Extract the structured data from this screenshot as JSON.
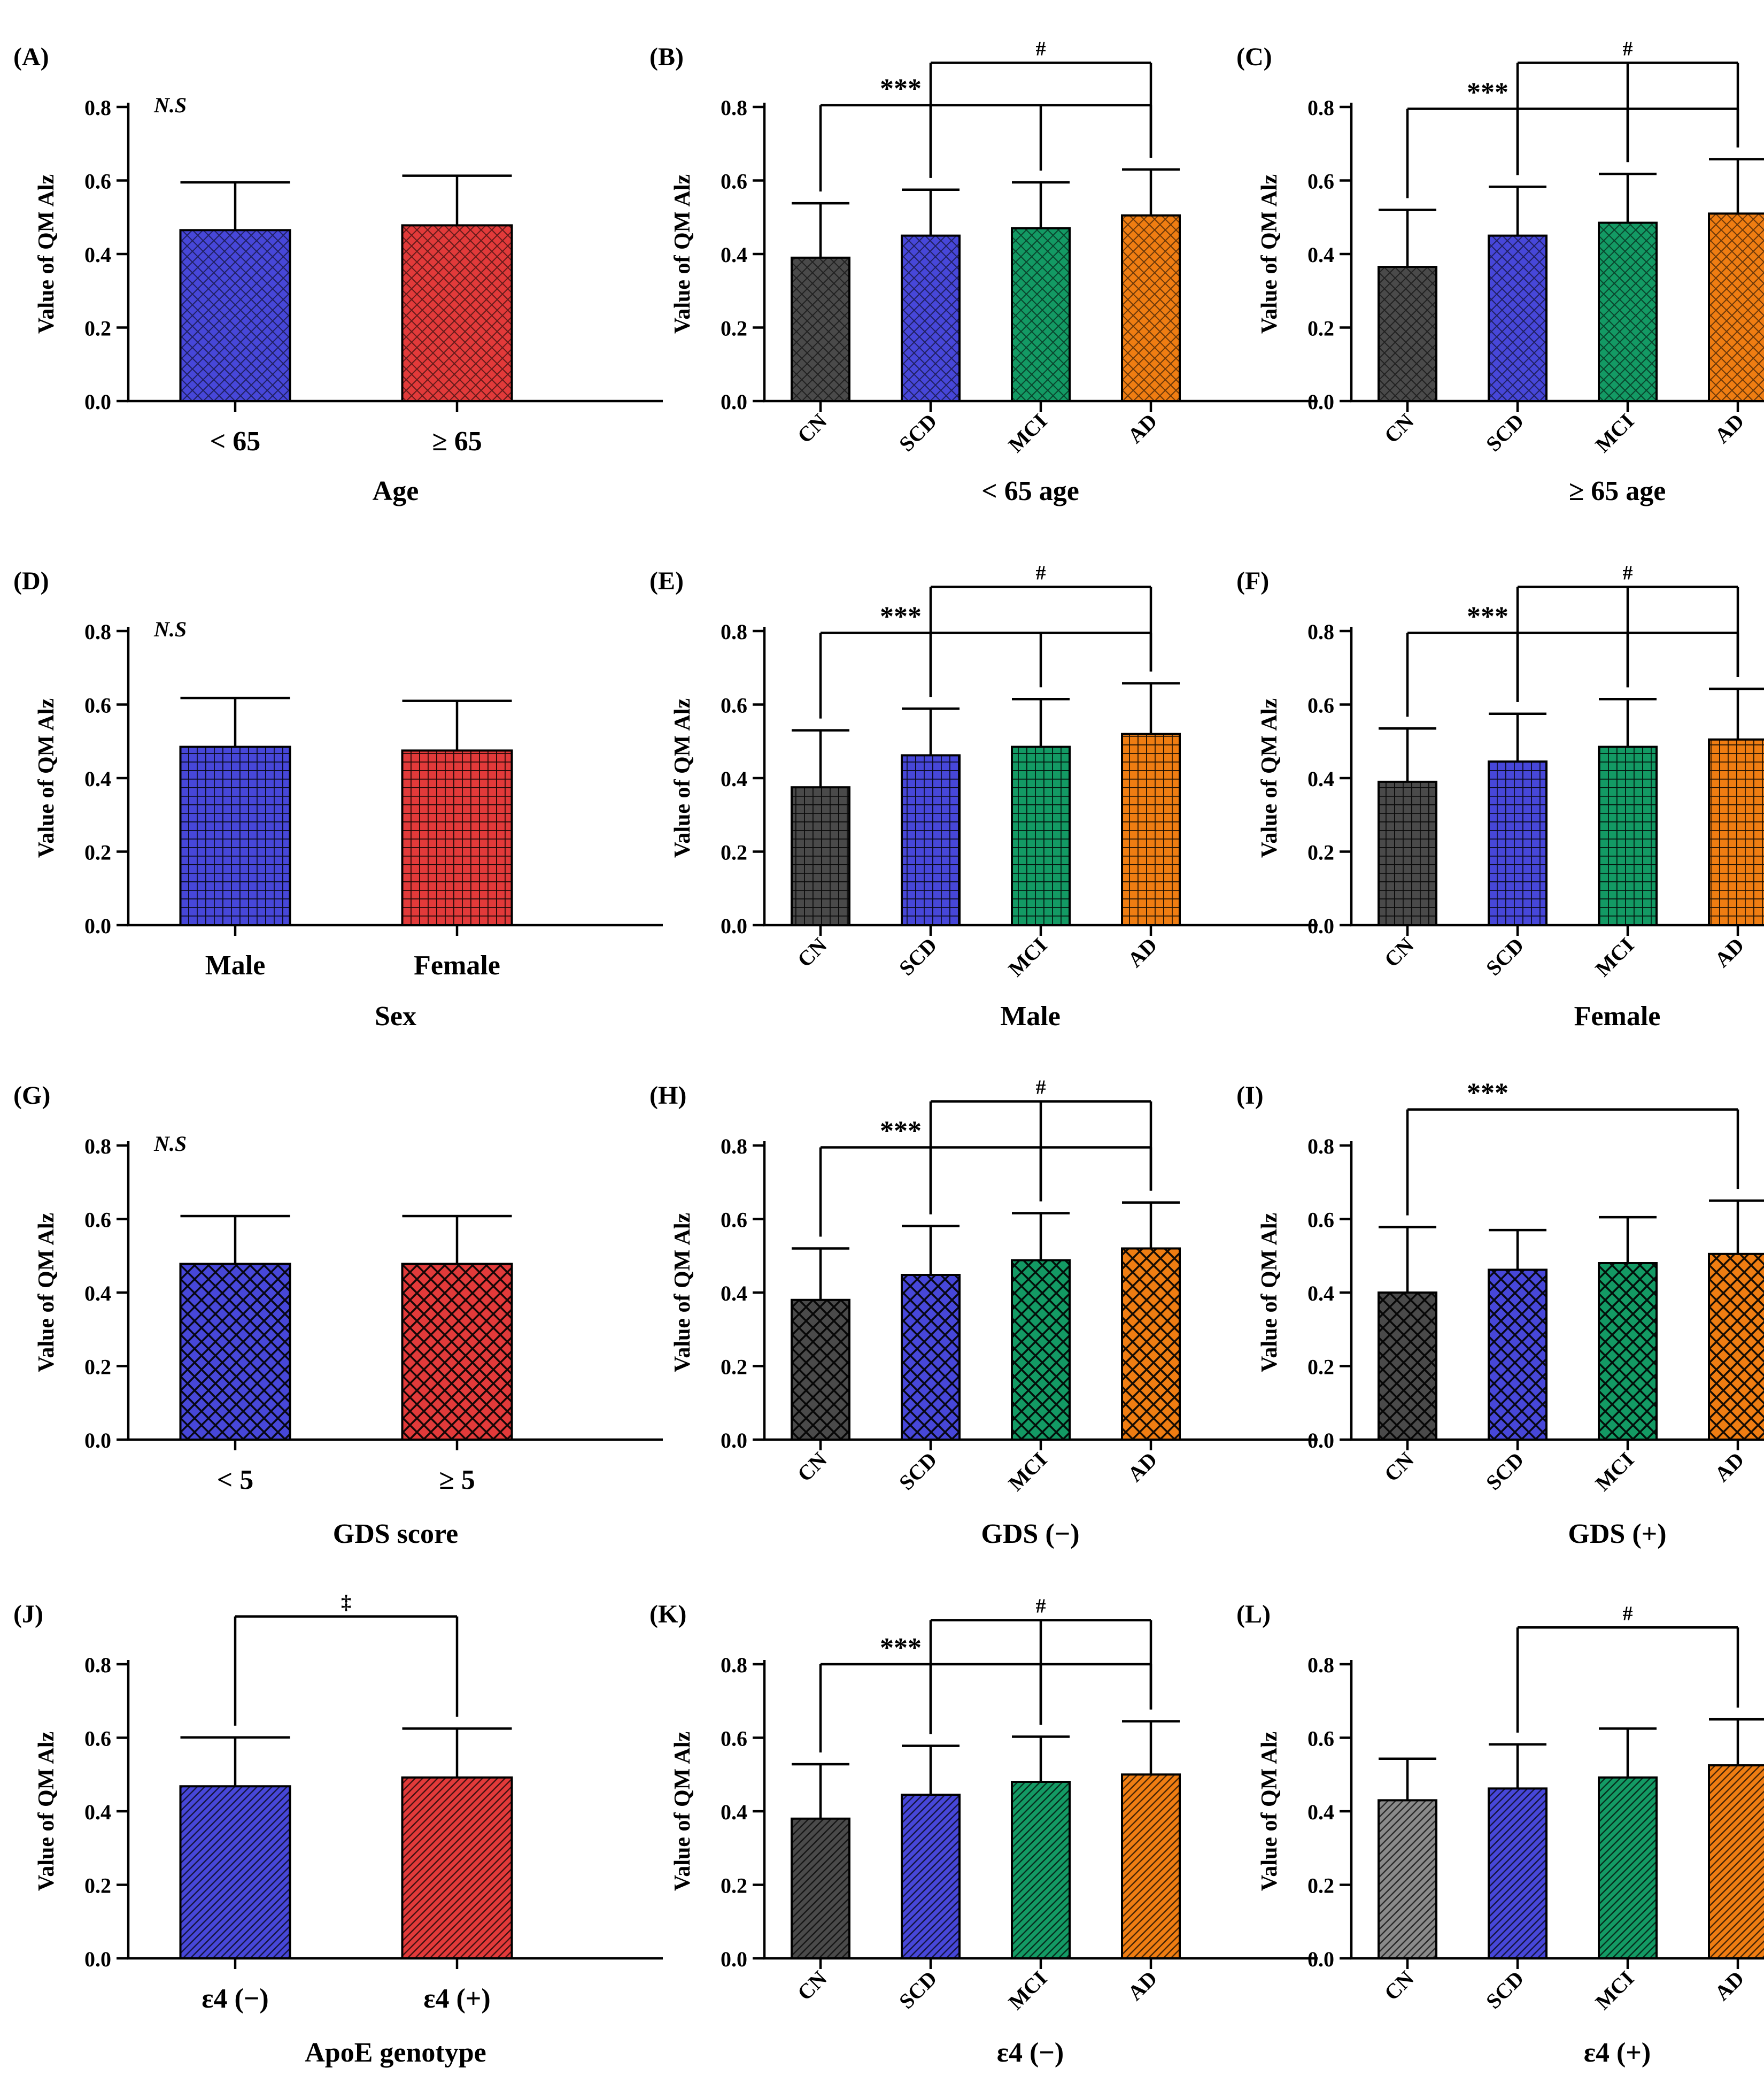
{
  "colors": {
    "CN": "#4a4a4a",
    "SCD": "#4747d9",
    "MCI": "#139a64",
    "AD": "#ef7d12",
    "red": "#e23a3a",
    "lightgray": "#8a8a8a"
  },
  "chart_data": [
    {
      "panel": "(A)",
      "type": "bar",
      "xlabel": "Age",
      "ylabel": "Value of QM Alz",
      "yticks": [
        "0.0",
        "0.2",
        "0.4",
        "0.6",
        "0.8"
      ],
      "ylim": [
        0,
        0.8
      ],
      "categories": [
        "< 65",
        "≥ 65"
      ],
      "values": [
        0.465,
        0.478
      ],
      "errors": [
        0.13,
        0.135
      ],
      "colors": [
        "SCD",
        "red"
      ],
      "pattern": "hatch",
      "note": "N.S",
      "rotated": false,
      "brackets": []
    },
    {
      "panel": "(B)",
      "type": "bar",
      "xlabel": "< 65 age",
      "ylabel": "Value of QM Alz",
      "yticks": [
        "0.0",
        "0.2",
        "0.4",
        "0.6",
        "0.8"
      ],
      "ylim": [
        0,
        0.8
      ],
      "categories": [
        "CN",
        "SCD",
        "MCI",
        "AD"
      ],
      "values": [
        0.39,
        0.45,
        0.47,
        0.505
      ],
      "errors": [
        0.148,
        0.125,
        0.125,
        0.125
      ],
      "colors": [
        "CN",
        "SCD",
        "MCI",
        "AD"
      ],
      "pattern": "hatch",
      "note": "",
      "rotated": true,
      "brackets": [
        {
          "label": "***",
          "y": 0.805,
          "from": 0,
          "drops": [
            0,
            1,
            2,
            3
          ]
        },
        {
          "label": "#",
          "y": 0.92,
          "from": 1,
          "drops": [
            1,
            3
          ]
        }
      ]
    },
    {
      "panel": "(C)",
      "type": "bar",
      "xlabel": "≥ 65 age",
      "ylabel": "Value of QM Alz",
      "yticks": [
        "0.0",
        "0.2",
        "0.4",
        "0.6",
        "0.8"
      ],
      "ylim": [
        0,
        0.8
      ],
      "categories": [
        "CN",
        "SCD",
        "MCI",
        "AD"
      ],
      "values": [
        0.365,
        0.45,
        0.485,
        0.51
      ],
      "errors": [
        0.155,
        0.133,
        0.133,
        0.148
      ],
      "colors": [
        "CN",
        "SCD",
        "MCI",
        "AD"
      ],
      "pattern": "hatch",
      "note": "",
      "rotated": true,
      "brackets": [
        {
          "label": "***",
          "y": 0.795,
          "from": 0,
          "drops": [
            0,
            1,
            2,
            3
          ]
        },
        {
          "label": "#",
          "y": 0.92,
          "from": 1,
          "drops": [
            1,
            2,
            3
          ]
        }
      ]
    },
    {
      "panel": "(D)",
      "type": "bar",
      "xlabel": "Sex",
      "ylabel": "Value of QM Alz",
      "yticks": [
        "0.0",
        "0.2",
        "0.4",
        "0.6",
        "0.8"
      ],
      "ylim": [
        0,
        0.8
      ],
      "categories": [
        "Male",
        "Female"
      ],
      "values": [
        0.485,
        0.475
      ],
      "errors": [
        0.133,
        0.135
      ],
      "colors": [
        "SCD",
        "red"
      ],
      "pattern": "grid",
      "note": "N.S",
      "rotated": false,
      "brackets": []
    },
    {
      "panel": "(E)",
      "type": "bar",
      "xlabel": "Male",
      "ylabel": "Value of QM Alz",
      "yticks": [
        "0.0",
        "0.2",
        "0.4",
        "0.6",
        "0.8"
      ],
      "ylim": [
        0,
        0.8
      ],
      "categories": [
        "CN",
        "SCD",
        "MCI",
        "AD"
      ],
      "values": [
        0.375,
        0.462,
        0.485,
        0.52
      ],
      "errors": [
        0.155,
        0.127,
        0.13,
        0.138
      ],
      "colors": [
        "CN",
        "SCD",
        "MCI",
        "AD"
      ],
      "pattern": "grid",
      "note": "",
      "rotated": true,
      "brackets": [
        {
          "label": "***",
          "y": 0.795,
          "from": 0,
          "drops": [
            0,
            1,
            2,
            3
          ]
        },
        {
          "label": "#",
          "y": 0.92,
          "from": 1,
          "drops": [
            1,
            3
          ]
        }
      ]
    },
    {
      "panel": "(F)",
      "type": "bar",
      "xlabel": "Female",
      "ylabel": "Value of QM Alz",
      "yticks": [
        "0.0",
        "0.2",
        "0.4",
        "0.6",
        "0.8"
      ],
      "ylim": [
        0,
        0.8
      ],
      "categories": [
        "CN",
        "SCD",
        "MCI",
        "AD"
      ],
      "values": [
        0.39,
        0.445,
        0.485,
        0.505
      ],
      "errors": [
        0.145,
        0.13,
        0.13,
        0.138
      ],
      "colors": [
        "CN",
        "SCD",
        "MCI",
        "AD"
      ],
      "pattern": "grid",
      "note": "",
      "rotated": true,
      "brackets": [
        {
          "label": "***",
          "y": 0.795,
          "from": 0,
          "drops": [
            0,
            1,
            2,
            3
          ]
        },
        {
          "label": "#",
          "y": 0.92,
          "from": 1,
          "drops": [
            1,
            2,
            3
          ]
        }
      ]
    },
    {
      "panel": "(G)",
      "type": "bar",
      "xlabel": "GDS score",
      "ylabel": "Value of QM Alz",
      "yticks": [
        "0.0",
        "0.2",
        "0.4",
        "0.6",
        "0.8"
      ],
      "ylim": [
        0,
        0.8
      ],
      "categories": [
        "< 5",
        "≥ 5"
      ],
      "values": [
        0.478,
        0.478
      ],
      "errors": [
        0.13,
        0.13
      ],
      "colors": [
        "SCD",
        "red"
      ],
      "pattern": "cross",
      "note": "N.S",
      "rotated": false,
      "brackets": []
    },
    {
      "panel": "(H)",
      "type": "bar",
      "xlabel": "GDS (−)",
      "ylabel": "Value of QM Alz",
      "yticks": [
        "0.0",
        "0.2",
        "0.4",
        "0.6",
        "0.8"
      ],
      "ylim": [
        0,
        0.8
      ],
      "categories": [
        "CN",
        "SCD",
        "MCI",
        "AD"
      ],
      "values": [
        0.38,
        0.448,
        0.488,
        0.52
      ],
      "errors": [
        0.14,
        0.133,
        0.128,
        0.125
      ],
      "colors": [
        "CN",
        "SCD",
        "MCI",
        "AD"
      ],
      "pattern": "cross",
      "note": "",
      "rotated": true,
      "brackets": [
        {
          "label": "***",
          "y": 0.795,
          "from": 0,
          "drops": [
            0,
            1,
            2,
            3
          ]
        },
        {
          "label": "#",
          "y": 0.92,
          "from": 1,
          "drops": [
            1,
            2,
            3
          ]
        }
      ]
    },
    {
      "panel": "(I)",
      "type": "bar",
      "xlabel": "GDS (+)",
      "ylabel": "Value of QM Alz",
      "yticks": [
        "0.0",
        "0.2",
        "0.4",
        "0.6",
        "0.8"
      ],
      "ylim": [
        0,
        0.8
      ],
      "categories": [
        "CN",
        "SCD",
        "MCI",
        "AD"
      ],
      "values": [
        0.4,
        0.462,
        0.48,
        0.505
      ],
      "errors": [
        0.178,
        0.108,
        0.125,
        0.145
      ],
      "colors": [
        "CN",
        "SCD",
        "MCI",
        "AD"
      ],
      "pattern": "cross",
      "note": "",
      "rotated": true,
      "brackets": [
        {
          "label": "***",
          "y": 0.898,
          "from": 0,
          "drops": [
            0,
            3
          ]
        }
      ]
    },
    {
      "panel": "(J)",
      "type": "bar",
      "xlabel": "ApoE genotype",
      "ylabel": "Value of QM Alz",
      "yticks": [
        "0.0",
        "0.2",
        "0.4",
        "0.6",
        "0.8"
      ],
      "ylim": [
        0,
        0.8
      ],
      "categories": [
        "ε4 (−)",
        "ε4 (+)"
      ],
      "values": [
        0.468,
        0.492
      ],
      "errors": [
        0.133,
        0.133
      ],
      "colors": [
        "SCD",
        "red"
      ],
      "pattern": "diag",
      "note": "",
      "rotated": false,
      "brackets": [
        {
          "label": "‡",
          "y": 0.93,
          "from": 0,
          "drops": [
            0,
            1
          ]
        }
      ]
    },
    {
      "panel": "(K)",
      "type": "bar",
      "xlabel": "ε4 (−)",
      "ylabel": "Value of QM Alz",
      "yticks": [
        "0.0",
        "0.2",
        "0.4",
        "0.6",
        "0.8"
      ],
      "ylim": [
        0,
        0.8
      ],
      "categories": [
        "CN",
        "SCD",
        "MCI",
        "AD"
      ],
      "values": [
        0.38,
        0.445,
        0.48,
        0.5
      ],
      "errors": [
        0.148,
        0.133,
        0.123,
        0.145
      ],
      "colors": [
        "CN",
        "SCD",
        "MCI",
        "AD"
      ],
      "pattern": "diag",
      "note": "",
      "rotated": true,
      "brackets": [
        {
          "label": "***",
          "y": 0.8,
          "from": 0,
          "drops": [
            0,
            1,
            2,
            3
          ]
        },
        {
          "label": "#",
          "y": 0.92,
          "from": 1,
          "drops": [
            1,
            2,
            3
          ]
        }
      ]
    },
    {
      "panel": "(L)",
      "type": "bar",
      "xlabel": "ε4 (+)",
      "ylabel": "Value of QM Alz",
      "yticks": [
        "0.0",
        "0.2",
        "0.4",
        "0.6",
        "0.8"
      ],
      "ylim": [
        0,
        0.8
      ],
      "categories": [
        "CN",
        "SCD",
        "MCI",
        "AD"
      ],
      "values": [
        0.43,
        0.462,
        0.492,
        0.525
      ],
      "errors": [
        0.113,
        0.12,
        0.133,
        0.125
      ],
      "colors": [
        "lightgray",
        "SCD",
        "MCI",
        "AD"
      ],
      "pattern": "diag",
      "note": "",
      "rotated": true,
      "brackets": [
        {
          "label": "#",
          "y": 0.9,
          "from": 1,
          "drops": [
            1,
            3
          ]
        }
      ]
    }
  ]
}
